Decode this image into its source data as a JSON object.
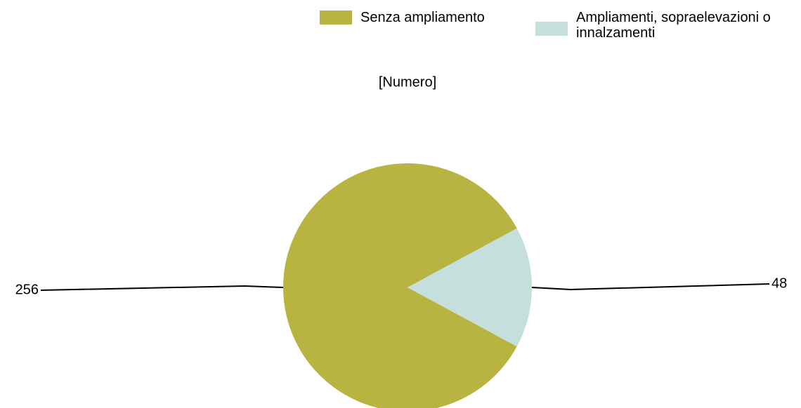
{
  "chart_data": {
    "type": "pie",
    "subtitle": "[Numero]",
    "categories": [
      "Senza ampliamento",
      "Ampliamenti, sopraelevazioni o innalzamenti"
    ],
    "values": [
      256,
      48
    ],
    "colors": [
      "#b8b441",
      "#c5e0dc"
    ]
  }
}
